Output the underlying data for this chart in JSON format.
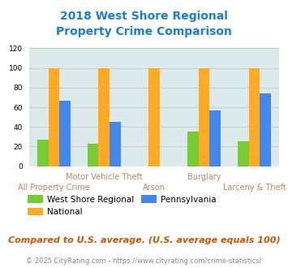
{
  "title": "2018 West Shore Regional\nProperty Crime Comparison",
  "title_color": "#1a7fd4",
  "categories": [
    "All Property Crime",
    "Motor Vehicle Theft",
    "Arson",
    "Burglary",
    "Larceny & Theft"
  ],
  "series": {
    "West Shore Regional": [
      27,
      23,
      0,
      35,
      25
    ],
    "National": [
      100,
      100,
      100,
      100,
      100
    ],
    "Pennsylvania": [
      67,
      45,
      0,
      57,
      74
    ]
  },
  "colors": {
    "West Shore Regional": "#77cc33",
    "National": "#ffaa22",
    "Pennsylvania": "#4488ee"
  },
  "ylim": [
    0,
    120
  ],
  "yticks": [
    0,
    20,
    40,
    60,
    80,
    100,
    120
  ],
  "bar_width": 0.22,
  "grid_color": "#cccccc",
  "plot_bg": "#ddeaec",
  "legend_fontsize": 7.5,
  "xlabel_fontsize": 7.0,
  "xlabel_color": "#bb8866",
  "footer_text": "Compared to U.S. average. (U.S. average equals 100)",
  "footer_color": "#cc5500",
  "footer_fontsize": 8.0,
  "copyright_text": "© 2025 CityRating.com - https://www.cityrating.com/crime-statistics/",
  "copyright_color": "#888888",
  "copyright_fontsize": 6.0
}
